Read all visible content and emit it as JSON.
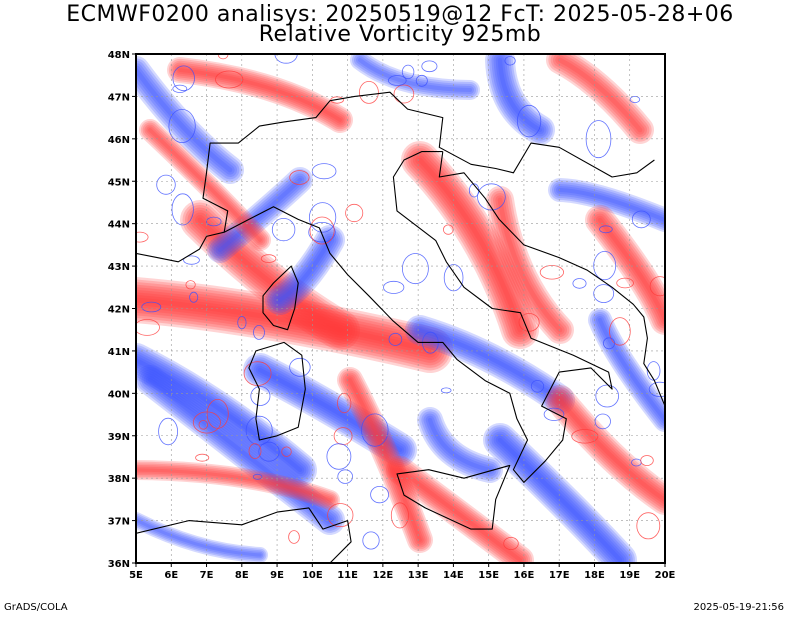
{
  "title_line1": "ECMWF0200 analisys: 20250519@12 FcT: 2025-05-28+06",
  "title_line2": "Relative Vorticity 925mb",
  "footer_left": "GrADS/COLA",
  "footer_right": "2025-05-19-21:56",
  "map": {
    "lon_range": [
      5,
      20
    ],
    "lat_range": [
      36,
      48
    ],
    "lon_ticks": [
      "5E",
      "6E",
      "7E",
      "8E",
      "9E",
      "10E",
      "11E",
      "12E",
      "13E",
      "14E",
      "15E",
      "16E",
      "17E",
      "18E",
      "19E",
      "20E"
    ],
    "lat_ticks": [
      "36N",
      "37N",
      "38N",
      "39N",
      "40N",
      "41N",
      "42N",
      "43N",
      "44N",
      "45N",
      "46N",
      "47N",
      "48N"
    ],
    "positive_color": "#ff3b3b",
    "negative_color": "#3b50ff",
    "coast_color": "#000000",
    "grid_lines": "dotted"
  }
}
